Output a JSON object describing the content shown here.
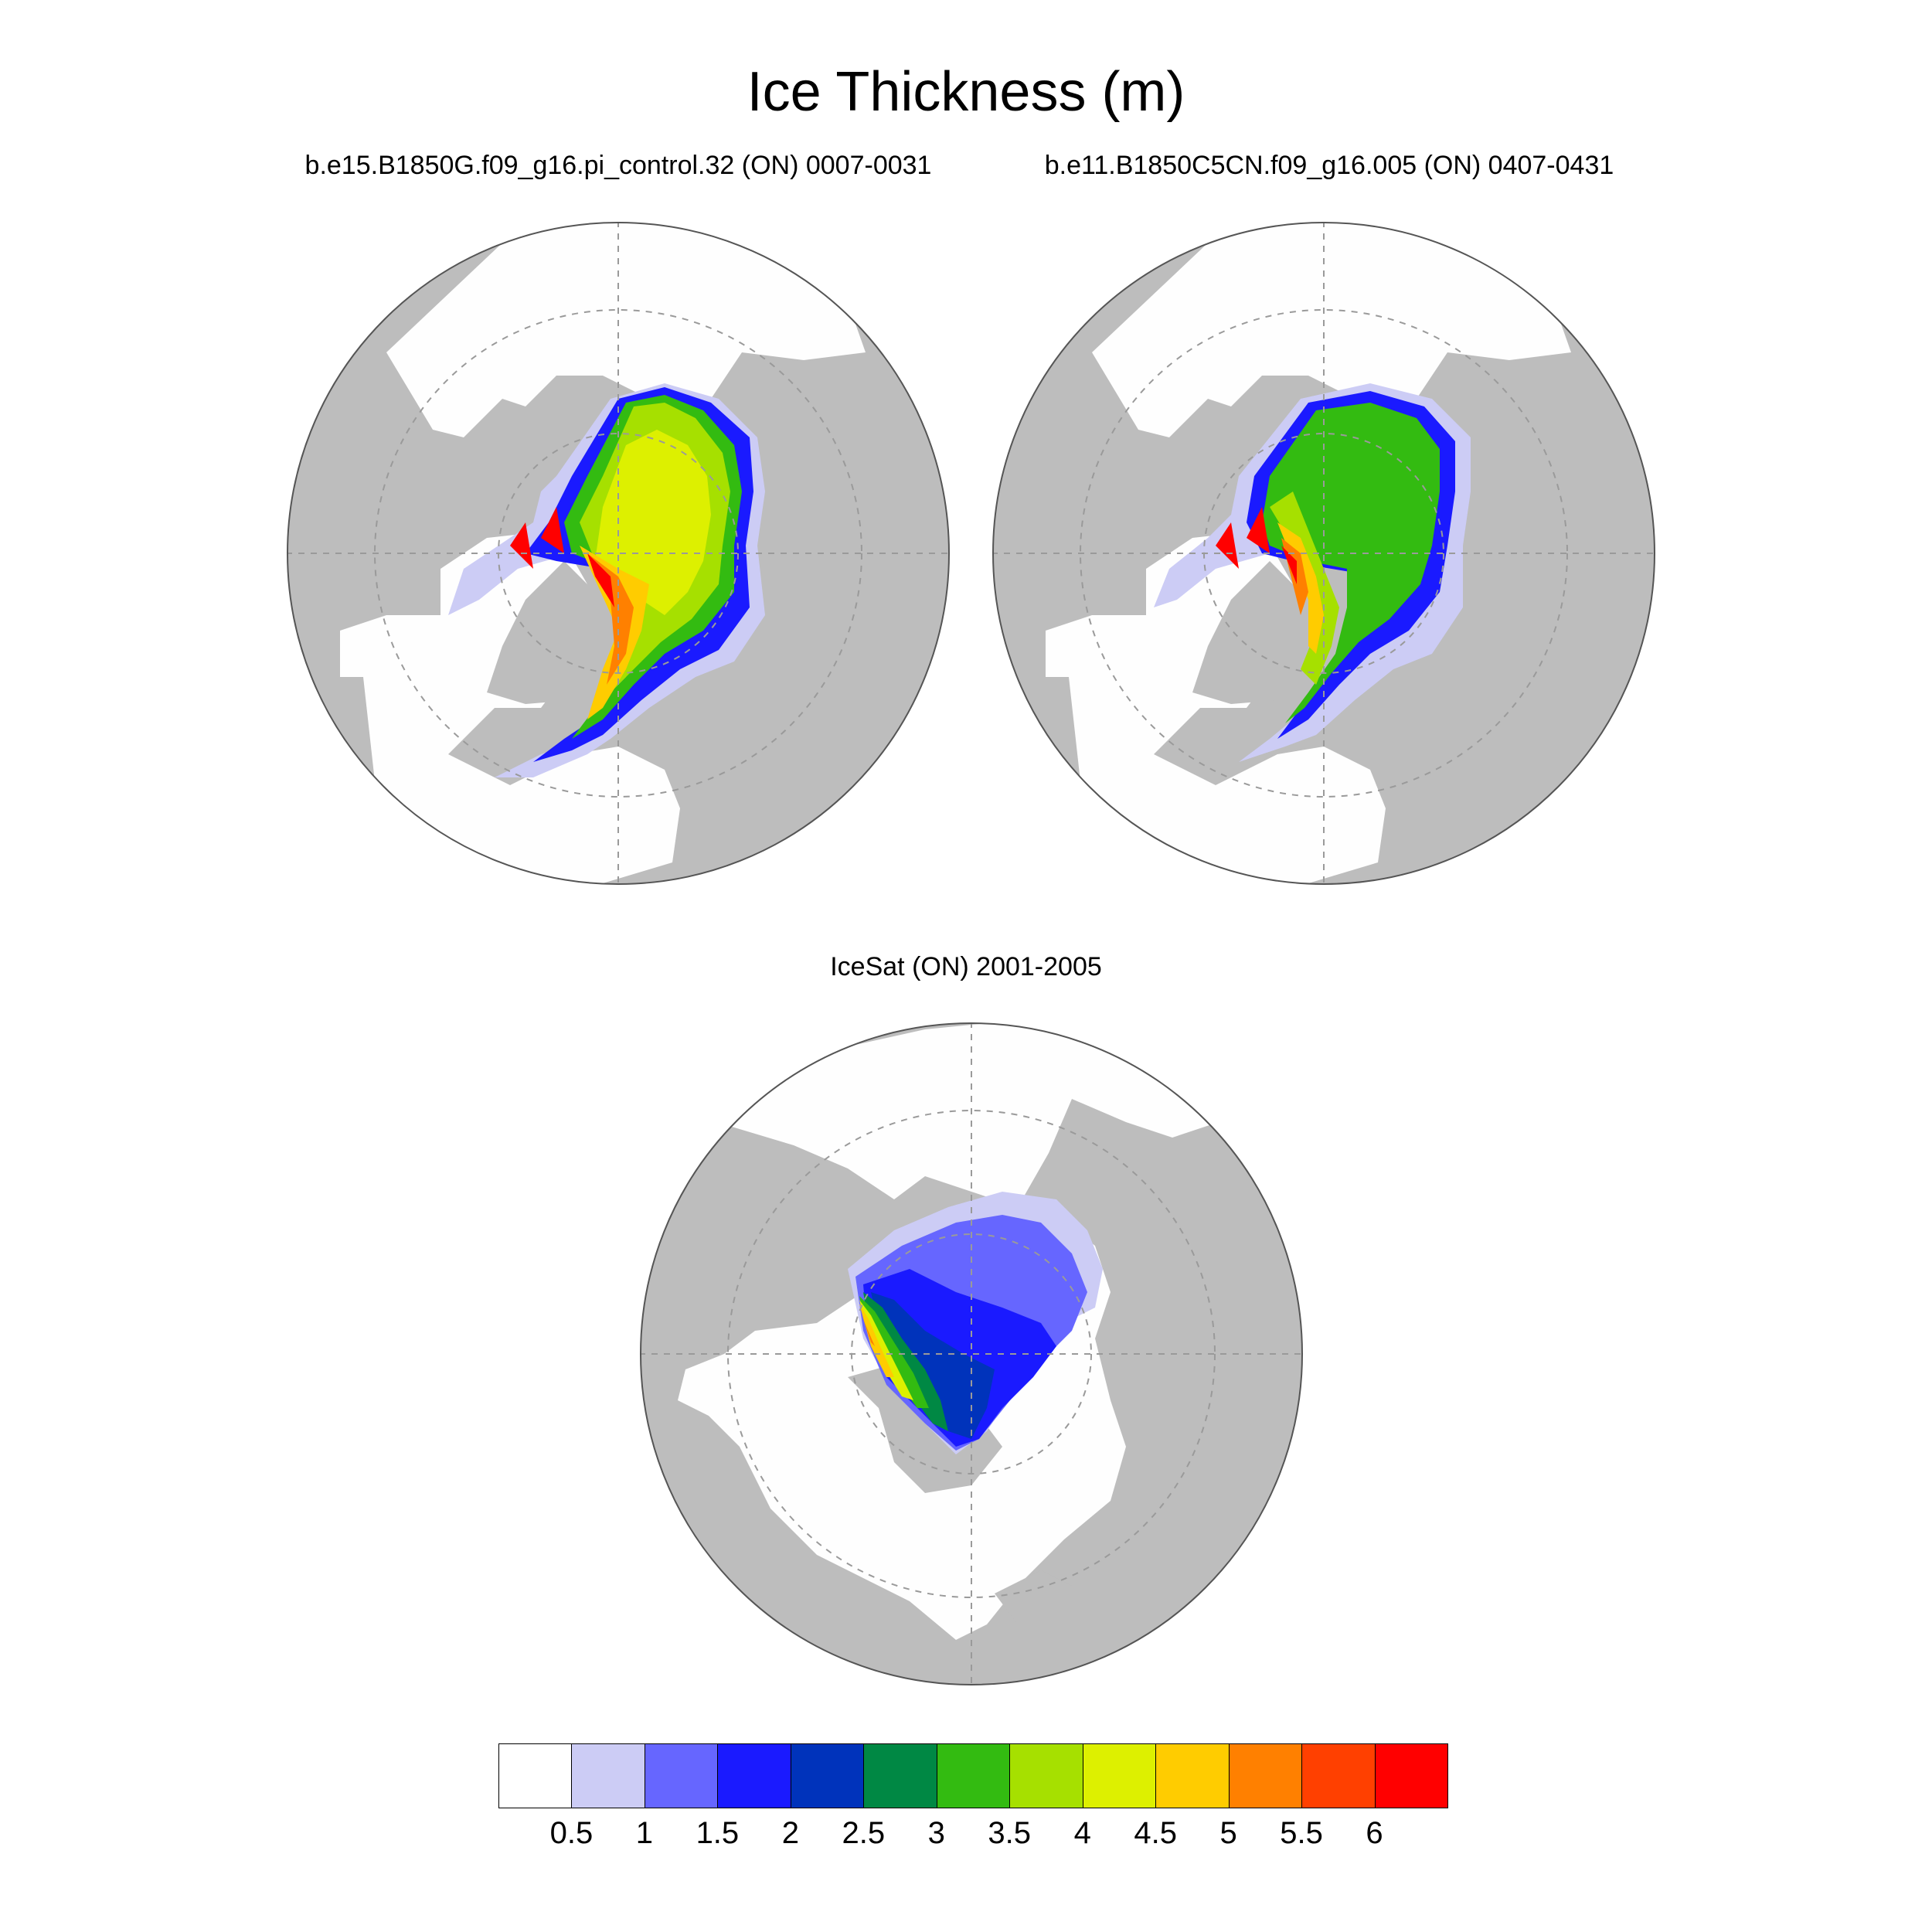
{
  "title": "Ice Thickness (m)",
  "panels": [
    {
      "label": "b.e15.B1850G.f09_g16.pi_control.32 (ON) 0007-0031",
      "style": "model1"
    },
    {
      "label": "b.e11.B1850C5CN.f09_g16.005 (ON) 0407-0431",
      "style": "model2"
    },
    {
      "label": "IceSat (ON) 2001-2005",
      "style": "obs"
    }
  ],
  "colorbar": {
    "colors": [
      "#ffffff",
      "#ccccf5",
      "#6666ff",
      "#1a1aff",
      "#0033bb",
      "#008844",
      "#33bb11",
      "#a6e000",
      "#ddf000",
      "#ffcc00",
      "#ff8000",
      "#ff4000",
      "#ff0000"
    ],
    "labels": [
      "0.5",
      "1",
      "1.5",
      "2",
      "2.5",
      "3",
      "3.5",
      "4",
      "4.5",
      "5",
      "5.5",
      "6"
    ]
  },
  "colors": {
    "land": "#bdbdbd",
    "ocean": "#fefefe",
    "grid": "#9a9a9a"
  }
}
